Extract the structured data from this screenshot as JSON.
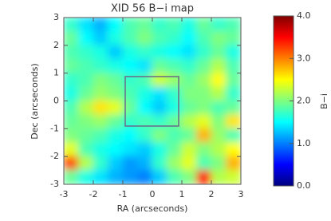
{
  "chart_data": {
    "type": "heatmap",
    "title": "XID 56 B−i map",
    "x_label": "RA (arcseconds)",
    "y_label": "Dec (arcseconds)",
    "colorbar_label": "B−i",
    "xlim": [
      -3,
      3
    ],
    "ylim": [
      -3,
      3
    ],
    "xticks": [
      -3,
      -2,
      -1,
      0,
      1,
      2,
      3
    ],
    "yticks": [
      -3,
      -2,
      -1,
      0,
      1,
      2,
      3
    ],
    "clim": [
      0,
      4
    ],
    "cticks": [
      {
        "value": 0,
        "label": "0.0"
      },
      {
        "value": 1,
        "label": "1.0"
      },
      {
        "value": 2,
        "label": "2.0"
      },
      {
        "value": 3,
        "label": "3.0"
      },
      {
        "value": 4,
        "label": "4.0"
      }
    ],
    "colormap": [
      "#00007f",
      "#0000ff",
      "#007fff",
      "#00ffff",
      "#7fff7f",
      "#ffff00",
      "#ff7f00",
      "#ff0000",
      "#7f0000"
    ],
    "x": [
      -2.75,
      -2.25,
      -1.75,
      -1.25,
      -0.75,
      -0.25,
      0.25,
      0.75,
      1.25,
      1.75,
      2.25,
      2.75
    ],
    "y": [
      2.75,
      2.25,
      1.75,
      1.25,
      0.75,
      0.25,
      -0.25,
      -0.75,
      -1.25,
      -1.75,
      -2.25,
      -2.75
    ],
    "z": [
      [
        1.7,
        1.4,
        1.2,
        1.5,
        1.8,
        1.9,
        1.7,
        1.8,
        1.6,
        1.9,
        1.7,
        1.8
      ],
      [
        1.9,
        1.5,
        1.3,
        1.6,
        1.8,
        2.0,
        1.8,
        1.7,
        1.5,
        1.8,
        2.0,
        1.9
      ],
      [
        1.8,
        1.7,
        1.6,
        1.3,
        1.6,
        1.7,
        1.6,
        1.5,
        1.4,
        1.7,
        1.9,
        1.6
      ],
      [
        1.9,
        1.8,
        1.7,
        1.6,
        1.5,
        1.4,
        1.9,
        1.8,
        1.7,
        1.9,
        2.2,
        1.8
      ],
      [
        1.7,
        1.8,
        2.0,
        1.9,
        1.7,
        1.8,
        2.3,
        2.1,
        1.9,
        2.1,
        2.5,
        1.9
      ],
      [
        1.6,
        1.9,
        2.1,
        2.0,
        1.8,
        1.6,
        1.4,
        1.7,
        2.0,
        2.0,
        2.2,
        1.7
      ],
      [
        1.8,
        2.2,
        2.6,
        2.4,
        1.9,
        1.5,
        1.3,
        1.6,
        1.9,
        2.0,
        1.8,
        1.9
      ],
      [
        1.9,
        2.0,
        2.1,
        1.9,
        1.7,
        1.8,
        1.7,
        1.9,
        2.2,
        2.4,
        2.0,
        2.6
      ],
      [
        2.0,
        1.9,
        1.8,
        1.6,
        1.5,
        1.7,
        2.0,
        1.8,
        1.9,
        2.8,
        2.1,
        1.8
      ],
      [
        2.4,
        1.8,
        1.6,
        1.5,
        1.4,
        1.3,
        1.6,
        1.9,
        2.3,
        2.0,
        2.2,
        2.5
      ],
      [
        3.2,
        2.2,
        1.7,
        1.3,
        1.1,
        1.2,
        1.7,
        2.1,
        2.4,
        1.8,
        2.0,
        2.8
      ],
      [
        1.9,
        1.6,
        1.4,
        1.2,
        1.1,
        1.0,
        1.3,
        1.8,
        2.0,
        3.4,
        2.2,
        2.3
      ]
    ]
  }
}
